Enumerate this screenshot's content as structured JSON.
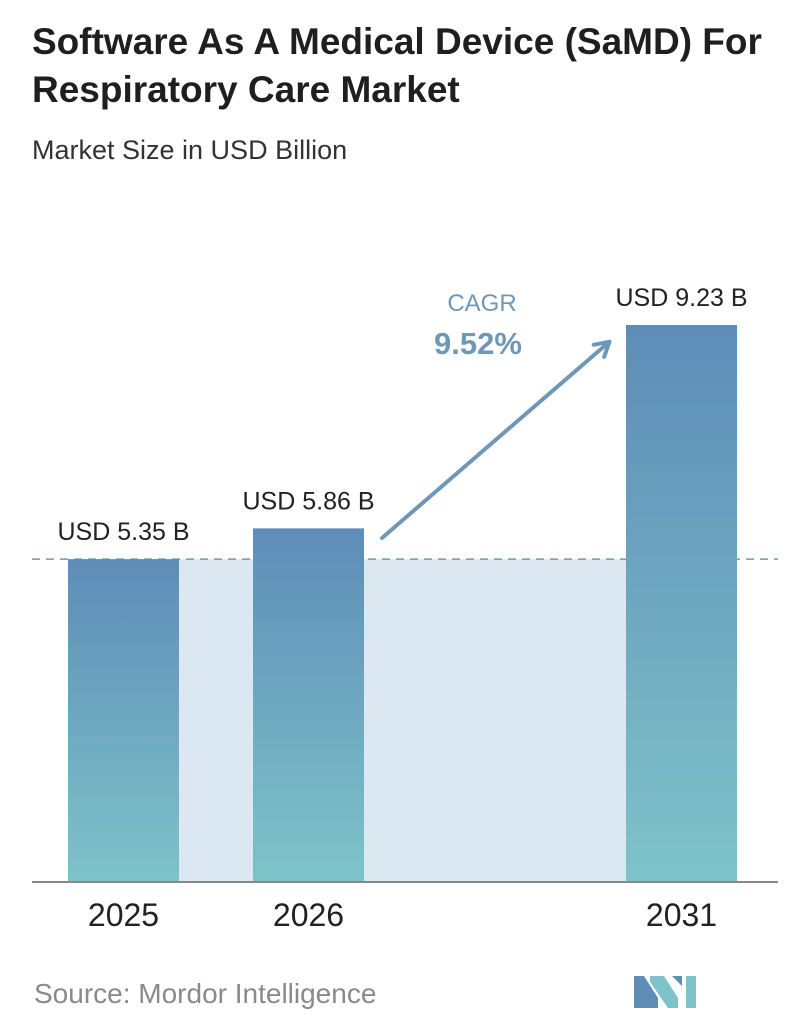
{
  "title": "Software As A Medical Device (SaMD) For Respiratory Care Market",
  "subtitle": "Market Size in USD Billion",
  "source": "Source:  Mordor Intelligence",
  "colors": {
    "bar_top": "#5e8db8",
    "bar_bottom": "#7ec3c9",
    "band": "#dce8f1",
    "arrow": "#6f97b8",
    "cagr_text": "#6f97b8",
    "axis": "#888888"
  },
  "chart_data": {
    "type": "bar",
    "title": "Software As A Medical Device (SaMD) For Respiratory Care Market",
    "subtitle": "Market Size in USD Billion",
    "xlabel": "",
    "ylabel": "",
    "categories": [
      "2025",
      "2026",
      "2031"
    ],
    "values": [
      5.35,
      5.86,
      9.23
    ],
    "value_labels": [
      "USD 5.35 B",
      "USD 5.86 B",
      "USD 9.23 B"
    ],
    "ylim": [
      0,
      9.23
    ],
    "grid": false,
    "reference_line": 5.35,
    "annotation": {
      "label": "CAGR",
      "value": "9.52%"
    }
  }
}
